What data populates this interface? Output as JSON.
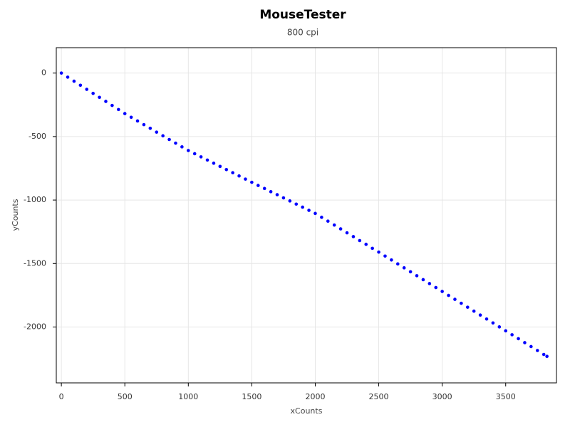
{
  "chart_data": {
    "type": "scatter",
    "title": "MouseTester",
    "subtitle": "800 cpi",
    "x_label": "xCounts",
    "y_label": "yCounts",
    "color": "#0000ff",
    "grid": true,
    "xlim": [
      -40,
      3900
    ],
    "ylim": [
      -2440,
      200
    ],
    "xticks": [
      0,
      500,
      1000,
      1500,
      2000,
      2500,
      3000,
      3500
    ],
    "yticks": [
      0,
      -500,
      -1000,
      -1500,
      -2000
    ],
    "x": [
      0,
      50,
      100,
      150,
      200,
      250,
      300,
      350,
      400,
      450,
      500,
      550,
      600,
      650,
      700,
      750,
      800,
      850,
      900,
      950,
      1000,
      1050,
      1100,
      1150,
      1200,
      1250,
      1300,
      1350,
      1400,
      1450,
      1500,
      1550,
      1600,
      1650,
      1700,
      1750,
      1800,
      1850,
      1900,
      1950,
      2000,
      2050,
      2100,
      2150,
      2200,
      2250,
      2300,
      2350,
      2400,
      2450,
      2500,
      2550,
      2600,
      2650,
      2700,
      2750,
      2800,
      2850,
      2900,
      2950,
      3000,
      3050,
      3100,
      3150,
      3200,
      3250,
      3300,
      3350,
      3400,
      3450,
      3500,
      3550,
      3600,
      3650,
      3700,
      3750,
      3800,
      3825
    ],
    "y": [
      0,
      -32,
      -64,
      -96,
      -128,
      -160,
      -191,
      -223,
      -255,
      -287,
      -319,
      -348,
      -377,
      -406,
      -435,
      -465,
      -494,
      -523,
      -552,
      -581,
      -610,
      -635,
      -660,
      -685,
      -710,
      -735,
      -760,
      -785,
      -810,
      -835,
      -860,
      -885,
      -909,
      -934,
      -958,
      -983,
      -1007,
      -1032,
      -1056,
      -1081,
      -1105,
      -1136,
      -1166,
      -1197,
      -1227,
      -1258,
      -1288,
      -1319,
      -1349,
      -1380,
      -1410,
      -1441,
      -1472,
      -1503,
      -1534,
      -1565,
      -1596,
      -1627,
      -1658,
      -1689,
      -1720,
      -1751,
      -1782,
      -1813,
      -1844,
      -1875,
      -1906,
      -1937,
      -1968,
      -1999,
      -2030,
      -2061,
      -2092,
      -2123,
      -2154,
      -2185,
      -2216,
      -2231
    ]
  }
}
